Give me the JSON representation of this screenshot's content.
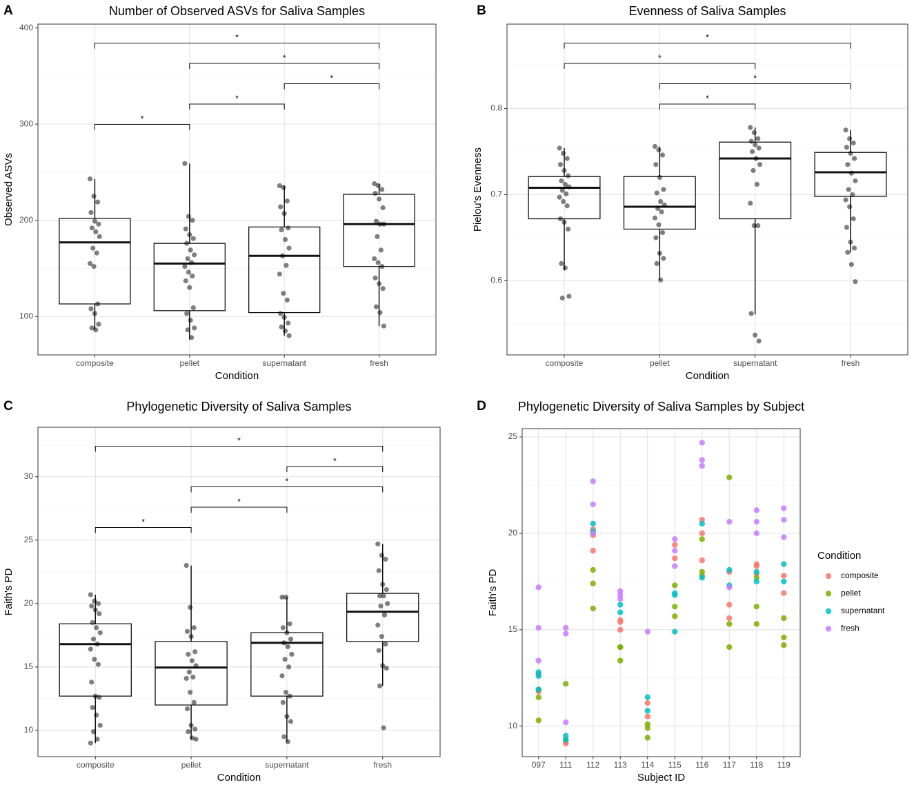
{
  "chart_data": [
    {
      "type": "box",
      "panel": "A",
      "title": "Number of Observed ASVs for Saliva Samples",
      "xlabel": "Condition",
      "ylabel": "Observed ASVs",
      "categories": [
        "composite",
        "pellet",
        "supernatant",
        "fresh"
      ],
      "ylim": [
        60,
        404
      ],
      "yticks": [
        100,
        200,
        300,
        400
      ],
      "grid": true,
      "boxes": [
        {
          "whislo": 86,
          "q1": 113,
          "med": 177,
          "q3": 202,
          "whishi": 243
        },
        {
          "whislo": 76,
          "q1": 106,
          "med": 155,
          "q3": 176,
          "whishi": 259
        },
        {
          "whislo": 80,
          "q1": 104,
          "med": 163,
          "q3": 193,
          "whishi": 236
        },
        {
          "whislo": 90,
          "q1": 152,
          "med": 196,
          "q3": 227,
          "whishi": 238
        }
      ],
      "points": [
        [
          243,
          225,
          219,
          208,
          199,
          196,
          192,
          188,
          183,
          171,
          166,
          155,
          152,
          113,
          108,
          103,
          92,
          88,
          86
        ],
        [
          259,
          204,
          200,
          191,
          185,
          181,
          176,
          169,
          164,
          160,
          156,
          152,
          146,
          142,
          137,
          130,
          109,
          103,
          96,
          88,
          86,
          78
        ],
        [
          236,
          234,
          220,
          214,
          207,
          192,
          190,
          180,
          171,
          163,
          153,
          144,
          124,
          117,
          103,
          99,
          93,
          89,
          85,
          80
        ],
        [
          238,
          236,
          232,
          228,
          222,
          213,
          199,
          196,
          196,
          183,
          169,
          160,
          156,
          152,
          140,
          134,
          129,
          110,
          104,
          90
        ]
      ],
      "brackets": [
        {
          "groups": [
            "composite",
            "pellet"
          ],
          "label": "*"
        },
        {
          "groups": [
            "pellet",
            "supernatant"
          ],
          "label": "*"
        },
        {
          "groups": [
            "supernatant",
            "fresh"
          ],
          "label": "*"
        },
        {
          "groups": [
            "pellet",
            "fresh"
          ],
          "label": "*"
        },
        {
          "groups": [
            "composite",
            "fresh"
          ],
          "label": "*"
        }
      ]
    },
    {
      "type": "box",
      "panel": "B",
      "title": "Evenness of Saliva Samples",
      "xlabel": "Condition",
      "ylabel": "Pielou's Evenness",
      "categories": [
        "composite",
        "pellet",
        "supernatant",
        "fresh"
      ],
      "ylim": [
        0.514,
        0.898
      ],
      "yticks": [
        0.6,
        0.7,
        0.8
      ],
      "grid": true,
      "boxes": [
        {
          "whislo": 0.612,
          "q1": 0.672,
          "med": 0.708,
          "q3": 0.721,
          "whishi": 0.754
        },
        {
          "whislo": 0.601,
          "q1": 0.66,
          "med": 0.686,
          "q3": 0.721,
          "whishi": 0.756
        },
        {
          "whislo": 0.561,
          "q1": 0.672,
          "med": 0.742,
          "q3": 0.761,
          "whishi": 0.778
        },
        {
          "whislo": 0.633,
          "q1": 0.698,
          "med": 0.726,
          "q3": 0.749,
          "whishi": 0.775
        }
      ],
      "points": [
        [
          0.754,
          0.748,
          0.742,
          0.735,
          0.728,
          0.722,
          0.716,
          0.712,
          0.709,
          0.705,
          0.701,
          0.697,
          0.692,
          0.687,
          0.672,
          0.668,
          0.66,
          0.62,
          0.615,
          0.582,
          0.58
        ],
        [
          0.756,
          0.752,
          0.746,
          0.735,
          0.72,
          0.706,
          0.702,
          0.692,
          0.688,
          0.684,
          0.68,
          0.673,
          0.665,
          0.656,
          0.65,
          0.632,
          0.626,
          0.62,
          0.601
        ],
        [
          0.778,
          0.772,
          0.765,
          0.762,
          0.758,
          0.754,
          0.75,
          0.742,
          0.735,
          0.728,
          0.712,
          0.69,
          0.664,
          0.664,
          0.562,
          0.537,
          0.53
        ],
        [
          0.775,
          0.765,
          0.76,
          0.755,
          0.748,
          0.742,
          0.735,
          0.725,
          0.716,
          0.706,
          0.7,
          0.694,
          0.686,
          0.672,
          0.662,
          0.645,
          0.638,
          0.633,
          0.619,
          0.599
        ]
      ],
      "brackets": [
        {
          "groups": [
            "pellet",
            "supernatant"
          ],
          "label": "*"
        },
        {
          "groups": [
            "pellet",
            "fresh"
          ],
          "label": "*"
        },
        {
          "groups": [
            "composite",
            "supernatant"
          ],
          "label": "*"
        },
        {
          "groups": [
            "composite",
            "fresh"
          ],
          "label": "*"
        }
      ]
    },
    {
      "type": "box",
      "panel": "C",
      "title": "Phylogenetic Diversity of Saliva Samples",
      "xlabel": "Condition",
      "ylabel": "Faith's PD",
      "categories": [
        "composite",
        "pellet",
        "supernatant",
        "fresh"
      ],
      "ylim": [
        7.93,
        33.9
      ],
      "yticks": [
        10,
        15,
        20,
        25,
        30
      ],
      "grid": true,
      "boxes": [
        {
          "whislo": 9.0,
          "q1": 12.7,
          "med": 16.8,
          "q3": 18.4,
          "whishi": 20.7
        },
        {
          "whislo": 9.3,
          "q1": 12.0,
          "med": 14.95,
          "q3": 17.0,
          "whishi": 23.0
        },
        {
          "whislo": 9.1,
          "q1": 12.7,
          "med": 16.9,
          "q3": 17.7,
          "whishi": 20.5
        },
        {
          "whislo": 13.5,
          "q1": 17.0,
          "med": 19.35,
          "q3": 20.8,
          "whishi": 24.7
        }
      ],
      "points": [
        [
          20.7,
          20.2,
          20.0,
          19.8,
          19.5,
          19.2,
          18.5,
          18.1,
          17.7,
          17.2,
          16.8,
          16.4,
          15.6,
          15.2,
          13.8,
          12.7,
          12.6,
          11.8,
          11.2,
          10.4,
          9.9,
          9.3,
          9.0
        ],
        [
          23.0,
          19.7,
          18.1,
          17.8,
          17.4,
          16.2,
          16.0,
          15.5,
          15.1,
          14.6,
          14.2,
          14.1,
          13.0,
          12.2,
          11.7,
          10.4,
          10.1,
          9.9,
          9.4,
          9.3
        ],
        [
          20.5,
          20.5,
          18.4,
          18.1,
          17.7,
          17.2,
          16.9,
          16.6,
          16.0,
          15.6,
          15.0,
          14.3,
          13.0,
          12.7,
          12.2,
          11.1,
          10.7,
          9.5,
          9.1
        ],
        [
          24.7,
          23.8,
          23.5,
          22.6,
          21.5,
          21.1,
          20.6,
          20.6,
          20.0,
          19.8,
          19.1,
          18.3,
          17.4,
          16.8,
          16.3,
          15.1,
          14.9,
          13.5,
          10.2
        ]
      ],
      "brackets": [
        {
          "groups": [
            "composite",
            "pellet"
          ],
          "label": "*"
        },
        {
          "groups": [
            "pellet",
            "supernatant"
          ],
          "label": "*"
        },
        {
          "groups": [
            "pellet",
            "fresh"
          ],
          "label": "*"
        },
        {
          "groups": [
            "supernatant",
            "fresh"
          ],
          "label": "*"
        },
        {
          "groups": [
            "composite",
            "fresh"
          ],
          "label": "*"
        }
      ]
    },
    {
      "type": "scatter",
      "panel": "D",
      "title": "Phylogenetic Diversity of Saliva Samples by Subject",
      "xlabel": "Subject ID",
      "ylabel": "Faith's PD",
      "categories": [
        "097",
        "111",
        "112",
        "113",
        "114",
        "115",
        "116",
        "117",
        "118",
        "119"
      ],
      "ylim": [
        8.42,
        25.43
      ],
      "yticks": [
        10,
        15,
        20,
        25
      ],
      "grid": true,
      "legend_title": "Condition",
      "legend": "right",
      "series": [
        {
          "name": "composite",
          "color": "#F8766D",
          "x": [
            "097",
            "097",
            "111",
            "111",
            "112",
            "112",
            "112",
            "113",
            "113",
            "113",
            "114",
            "114",
            "115",
            "115",
            "116",
            "116",
            "116",
            "117",
            "117",
            "117",
            "118",
            "118",
            "118",
            "119",
            "119"
          ],
          "values": [
            12.7,
            11.8,
            9.1,
            9.2,
            20.2,
            19.9,
            19.1,
            15.5,
            15.4,
            15.0,
            11.2,
            10.5,
            19.4,
            18.7,
            20.7,
            20.0,
            18.6,
            18.0,
            16.3,
            15.6,
            18.4,
            18.3,
            17.9,
            17.8,
            16.9
          ]
        },
        {
          "name": "pellet",
          "color": "#7CAE00",
          "x": [
            "097",
            "097",
            "097",
            "111",
            "111",
            "112",
            "112",
            "112",
            "113",
            "113",
            "113",
            "114",
            "114",
            "114",
            "115",
            "115",
            "115",
            "116",
            "116",
            "116",
            "117",
            "117",
            "117",
            "118",
            "118",
            "118",
            "119",
            "119",
            "119"
          ],
          "values": [
            11.9,
            11.5,
            10.3,
            12.2,
            9.3,
            18.1,
            17.4,
            16.1,
            14.1,
            14.1,
            13.4,
            10.1,
            9.9,
            9.4,
            17.3,
            16.2,
            15.7,
            19.7,
            18.0,
            17.8,
            22.9,
            15.3,
            14.1,
            17.7,
            16.2,
            15.3,
            15.6,
            14.6,
            14.2
          ]
        },
        {
          "name": "supernatant",
          "color": "#00BFC4",
          "x": [
            "097",
            "097",
            "097",
            "111",
            "111",
            "112",
            "112",
            "113",
            "113",
            "114",
            "114",
            "115",
            "115",
            "115",
            "116",
            "116",
            "117",
            "117",
            "118",
            "118",
            "119",
            "119"
          ],
          "values": [
            12.8,
            12.6,
            11.9,
            9.5,
            9.3,
            20.5,
            20.1,
            16.3,
            15.9,
            11.5,
            10.8,
            16.9,
            16.8,
            14.9,
            20.5,
            17.7,
            18.1,
            17.3,
            18.0,
            17.5,
            18.4,
            17.5
          ]
        },
        {
          "name": "fresh",
          "color": "#C77CFF",
          "x": [
            "097",
            "097",
            "097",
            "111",
            "111",
            "111",
            "112",
            "112",
            "112",
            "113",
            "113",
            "113",
            "114",
            "115",
            "115",
            "115",
            "116",
            "116",
            "116",
            "117",
            "117",
            "118",
            "118",
            "118",
            "119",
            "119",
            "119"
          ],
          "values": [
            17.2,
            15.1,
            13.4,
            15.1,
            14.8,
            10.2,
            22.7,
            21.5,
            20.0,
            17.0,
            16.8,
            16.6,
            14.9,
            19.7,
            19.1,
            18.3,
            24.7,
            23.8,
            23.5,
            20.6,
            17.2,
            21.2,
            20.6,
            20.0,
            21.3,
            20.7,
            19.8
          ]
        }
      ]
    }
  ]
}
